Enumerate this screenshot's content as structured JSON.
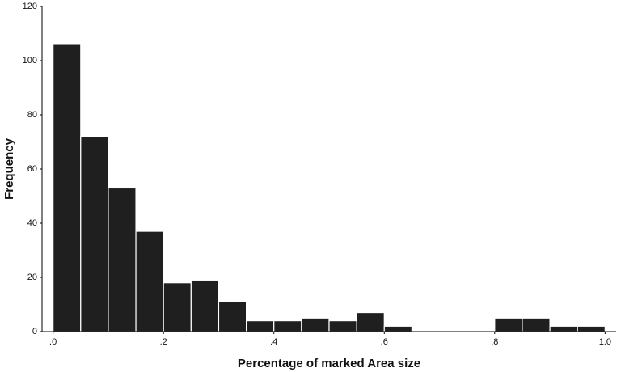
{
  "chart_data": {
    "type": "histogram",
    "x_label": "Percentage of marked Area size",
    "y_label": "Frequency",
    "bins": [
      0,
      0.05,
      0.1,
      0.15,
      0.2,
      0.25,
      0.3,
      0.35,
      0.4,
      0.45,
      0.5,
      0.55,
      0.6,
      0.65,
      0.7,
      0.75,
      0.8,
      0.85,
      0.9,
      0.95,
      1.0
    ],
    "values": [
      106,
      72,
      53,
      37,
      18,
      19,
      11,
      4,
      4,
      5,
      4,
      7,
      2,
      0,
      0,
      0,
      5,
      5,
      2,
      2
    ],
    "color": "#1f1f1f",
    "xlim": [
      -0.02,
      1.02
    ],
    "xticks": [
      {
        "value": 0,
        "label": ".0"
      },
      {
        "value": 0.2,
        "label": ".2"
      },
      {
        "value": 0.4,
        "label": ".4"
      },
      {
        "value": 0.6,
        "label": ".6"
      },
      {
        "value": 0.8,
        "label": ".8"
      },
      {
        "value": 1.0,
        "label": "1.0"
      }
    ],
    "ylim": [
      0,
      120
    ],
    "yticks": [
      0,
      20,
      40,
      60,
      80,
      100,
      120
    ]
  }
}
